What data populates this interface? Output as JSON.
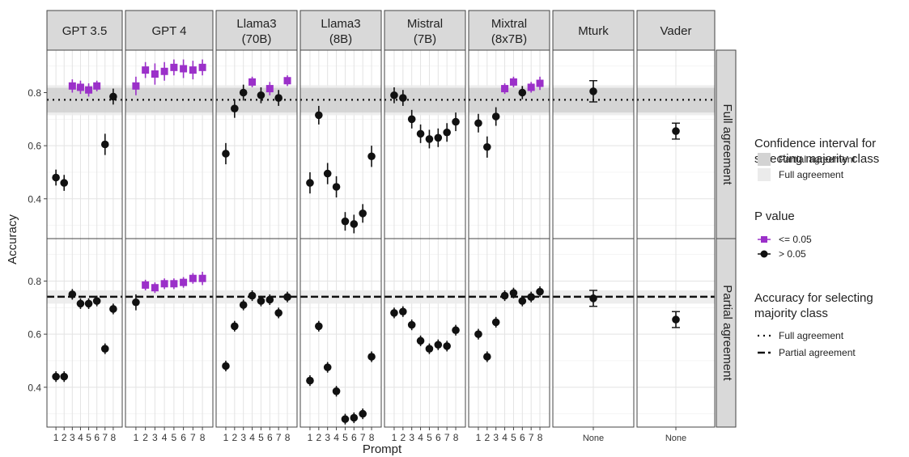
{
  "chart_data": {
    "type": "scatter",
    "xlabel": "Prompt",
    "ylabel": "Accuracy",
    "ylim": [
      0.25,
      0.96
    ],
    "yticks": [
      "0.4",
      "0.6",
      "0.8"
    ],
    "yticks_values": [
      0.4,
      0.6,
      0.8
    ],
    "grid": true,
    "legend_position": "right",
    "colors": {
      "significant": "#9b30c9",
      "not_significant": "#111111",
      "partial_band": "#d3d3d3",
      "full_band": "#ebebeb",
      "strip": "#d9d9d9"
    },
    "columns": [
      {
        "title_line1": "GPT 3.5",
        "title_line2": "",
        "x_ticks": [
          "1",
          "2",
          "3",
          "4",
          "5",
          "6",
          "7",
          "8"
        ]
      },
      {
        "title_line1": "GPT 4",
        "title_line2": "",
        "x_ticks": [
          "1",
          "2",
          "3",
          "4",
          "5",
          "6",
          "7",
          "8"
        ]
      },
      {
        "title_line1": "Llama3",
        "title_line2": "(70B)",
        "x_ticks": [
          "1",
          "2",
          "3",
          "4",
          "5",
          "6",
          "7",
          "8"
        ]
      },
      {
        "title_line1": "Llama3",
        "title_line2": "(8B)",
        "x_ticks": [
          "1",
          "2",
          "3",
          "4",
          "5",
          "6",
          "7",
          "8"
        ]
      },
      {
        "title_line1": "Mistral",
        "title_line2": "(7B)",
        "x_ticks": [
          "1",
          "2",
          "3",
          "4",
          "5",
          "6",
          "7",
          "8"
        ]
      },
      {
        "title_line1": "Mixtral",
        "title_line2": "(8x7B)",
        "x_ticks": [
          "1",
          "2",
          "3",
          "4",
          "5",
          "6",
          "7",
          "8"
        ]
      },
      {
        "title_line1": "Mturk",
        "title_line2": "",
        "x_ticks": [
          "None"
        ]
      },
      {
        "title_line1": "Vader",
        "title_line2": "",
        "x_ticks": [
          "None"
        ]
      }
    ],
    "rows": [
      {
        "label": "Full agreement",
        "majority_accuracy": 0.773,
        "line_style": "dotted",
        "ci_partial": [
          0.725,
          0.818
        ],
        "ci_full": [
          0.715,
          0.828
        ],
        "panels": [
          {
            "y": [
              0.48,
              0.46,
              0.825,
              0.82,
              0.81,
              0.825,
              0.605,
              0.785
            ],
            "err": [
              0.03,
              0.03,
              0.025,
              0.025,
              0.025,
              0.02,
              0.04,
              0.03
            ],
            "sig": [
              0,
              0,
              1,
              1,
              1,
              1,
              0,
              0
            ]
          },
          {
            "y": [
              0.825,
              0.885,
              0.87,
              0.88,
              0.895,
              0.89,
              0.885,
              0.895
            ],
            "err": [
              0.035,
              0.03,
              0.04,
              0.035,
              0.03,
              0.035,
              0.035,
              0.03
            ],
            "sig": [
              1,
              1,
              1,
              1,
              1,
              1,
              1,
              1
            ]
          },
          {
            "y": [
              0.57,
              0.74,
              0.8,
              0.84,
              0.79,
              0.815,
              0.78,
              0.845
            ],
            "err": [
              0.04,
              0.035,
              0.03,
              0.02,
              0.03,
              0.025,
              0.03,
              0.02
            ],
            "sig": [
              0,
              0,
              0,
              1,
              0,
              1,
              0,
              1
            ]
          },
          {
            "y": [
              0.46,
              0.715,
              0.495,
              0.445,
              0.315,
              0.305,
              0.345,
              0.56
            ],
            "err": [
              0.04,
              0.035,
              0.04,
              0.04,
              0.035,
              0.035,
              0.035,
              0.04
            ],
            "sig": [
              0,
              0,
              0,
              0,
              0,
              0,
              0,
              0
            ]
          },
          {
            "y": [
              0.79,
              0.78,
              0.7,
              0.645,
              0.625,
              0.63,
              0.65,
              0.69
            ],
            "err": [
              0.03,
              0.03,
              0.035,
              0.035,
              0.035,
              0.035,
              0.035,
              0.035
            ],
            "sig": [
              0,
              0,
              0,
              0,
              0,
              0,
              0,
              0
            ]
          },
          {
            "y": [
              0.685,
              0.595,
              0.71,
              0.815,
              0.84,
              0.8,
              0.82,
              0.835
            ],
            "err": [
              0.035,
              0.04,
              0.035,
              0.02,
              0.02,
              0.025,
              0.02,
              0.025
            ],
            "sig": [
              0,
              0,
              0,
              1,
              1,
              0,
              1,
              1
            ]
          },
          {
            "y": [
              0.805
            ],
            "err": [
              0.04
            ],
            "sig": [
              0
            ]
          },
          {
            "y": [
              0.655
            ],
            "err": [
              0.03
            ],
            "sig": [
              0
            ]
          }
        ]
      },
      {
        "label": "Partial agreement",
        "majority_accuracy": 0.741,
        "line_style": "dashed",
        "ci_partial": [
          0.725,
          0.755
        ],
        "ci_full": [
          0.715,
          0.765
        ],
        "panels": [
          {
            "y": [
              0.44,
              0.44,
              0.75,
              0.715,
              0.715,
              0.725,
              0.545,
              0.695
            ],
            "err": [
              0.02,
              0.02,
              0.02,
              0.02,
              0.02,
              0.02,
              0.02,
              0.02
            ],
            "sig": [
              0,
              0,
              0,
              0,
              0,
              0,
              0,
              0
            ]
          },
          {
            "y": [
              0.72,
              0.785,
              0.775,
              0.79,
              0.79,
              0.795,
              0.81,
              0.81
            ],
            "err": [
              0.03,
              0.02,
              0.02,
              0.02,
              0.02,
              0.02,
              0.02,
              0.025
            ],
            "sig": [
              0,
              1,
              1,
              1,
              1,
              1,
              1,
              1
            ]
          },
          {
            "y": [
              0.48,
              0.63,
              0.71,
              0.745,
              0.725,
              0.73,
              0.68,
              0.74
            ],
            "err": [
              0.02,
              0.02,
              0.02,
              0.02,
              0.02,
              0.02,
              0.02,
              0.02
            ],
            "sig": [
              0,
              0,
              0,
              0,
              0,
              0,
              0,
              0
            ]
          },
          {
            "y": [
              0.425,
              0.63,
              0.475,
              0.385,
              0.28,
              0.285,
              0.3,
              0.515
            ],
            "err": [
              0.02,
              0.02,
              0.02,
              0.02,
              0.02,
              0.02,
              0.02,
              0.02
            ],
            "sig": [
              0,
              0,
              0,
              0,
              0,
              0,
              0,
              0
            ]
          },
          {
            "y": [
              0.68,
              0.685,
              0.635,
              0.575,
              0.545,
              0.56,
              0.555,
              0.615
            ],
            "err": [
              0.02,
              0.02,
              0.02,
              0.02,
              0.02,
              0.02,
              0.02,
              0.02
            ],
            "sig": [
              0,
              0,
              0,
              0,
              0,
              0,
              0,
              0
            ]
          },
          {
            "y": [
              0.6,
              0.515,
              0.645,
              0.745,
              0.755,
              0.725,
              0.74,
              0.76
            ],
            "err": [
              0.02,
              0.02,
              0.02,
              0.02,
              0.02,
              0.02,
              0.02,
              0.02
            ],
            "sig": [
              0,
              0,
              0,
              0,
              0,
              0,
              0,
              0
            ]
          },
          {
            "y": [
              0.735
            ],
            "err": [
              0.03
            ],
            "sig": [
              0
            ]
          },
          {
            "y": [
              0.655
            ],
            "err": [
              0.03
            ],
            "sig": [
              0
            ]
          }
        ]
      }
    ],
    "legend": {
      "ci_title_line1": "Confidence interval for",
      "ci_title_line2": "selecting majority class",
      "ci_items": [
        "Partial agreement",
        "Full agreement"
      ],
      "p_title": "P value",
      "p_items": [
        "<= 0.05",
        "> 0.05"
      ],
      "acc_title_line1": "Accuracy for selecting",
      "acc_title_line2": "majority class",
      "acc_items": [
        "Full agreement",
        "Partial agreement"
      ]
    }
  }
}
